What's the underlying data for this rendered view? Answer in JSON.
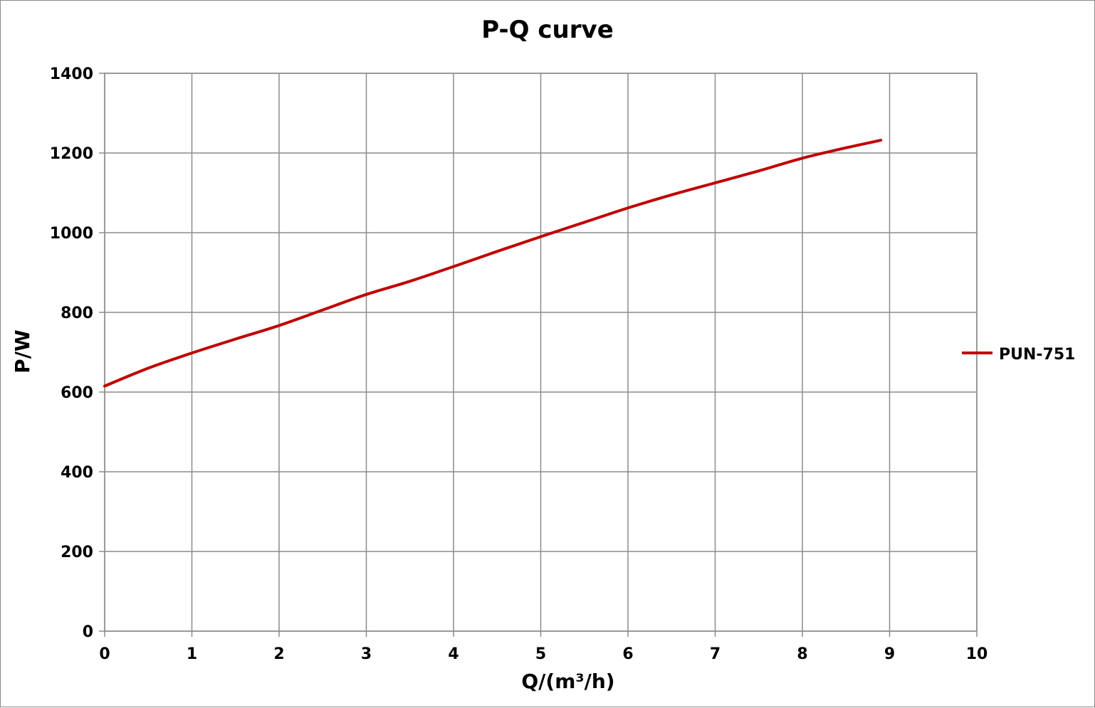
{
  "chart_data": {
    "type": "line",
    "title": "P-Q  curve",
    "xlabel": "Q/(m³/h)",
    "ylabel": "P/W",
    "xlim": [
      0,
      10
    ],
    "ylim": [
      0,
      1400
    ],
    "x_ticks": [
      "0",
      "1",
      "2",
      "3",
      "4",
      "5",
      "6",
      "7",
      "8",
      "9",
      "10"
    ],
    "y_ticks": [
      "0",
      "200",
      "400",
      "600",
      "800",
      "1000",
      "1200",
      "1400"
    ],
    "grid": true,
    "legend_position": "right",
    "series": [
      {
        "name": "PUN-751",
        "color": "#c00000",
        "x": [
          0,
          0.5,
          1,
          1.5,
          2,
          2.5,
          3,
          3.5,
          4,
          4.5,
          5,
          5.5,
          6,
          6.5,
          7,
          7.5,
          8,
          8.5,
          8.9
        ],
        "y": [
          615,
          660,
          698,
          733,
          767,
          806,
          845,
          878,
          915,
          953,
          990,
          1026,
          1062,
          1095,
          1125,
          1155,
          1187,
          1213,
          1232
        ]
      }
    ]
  }
}
